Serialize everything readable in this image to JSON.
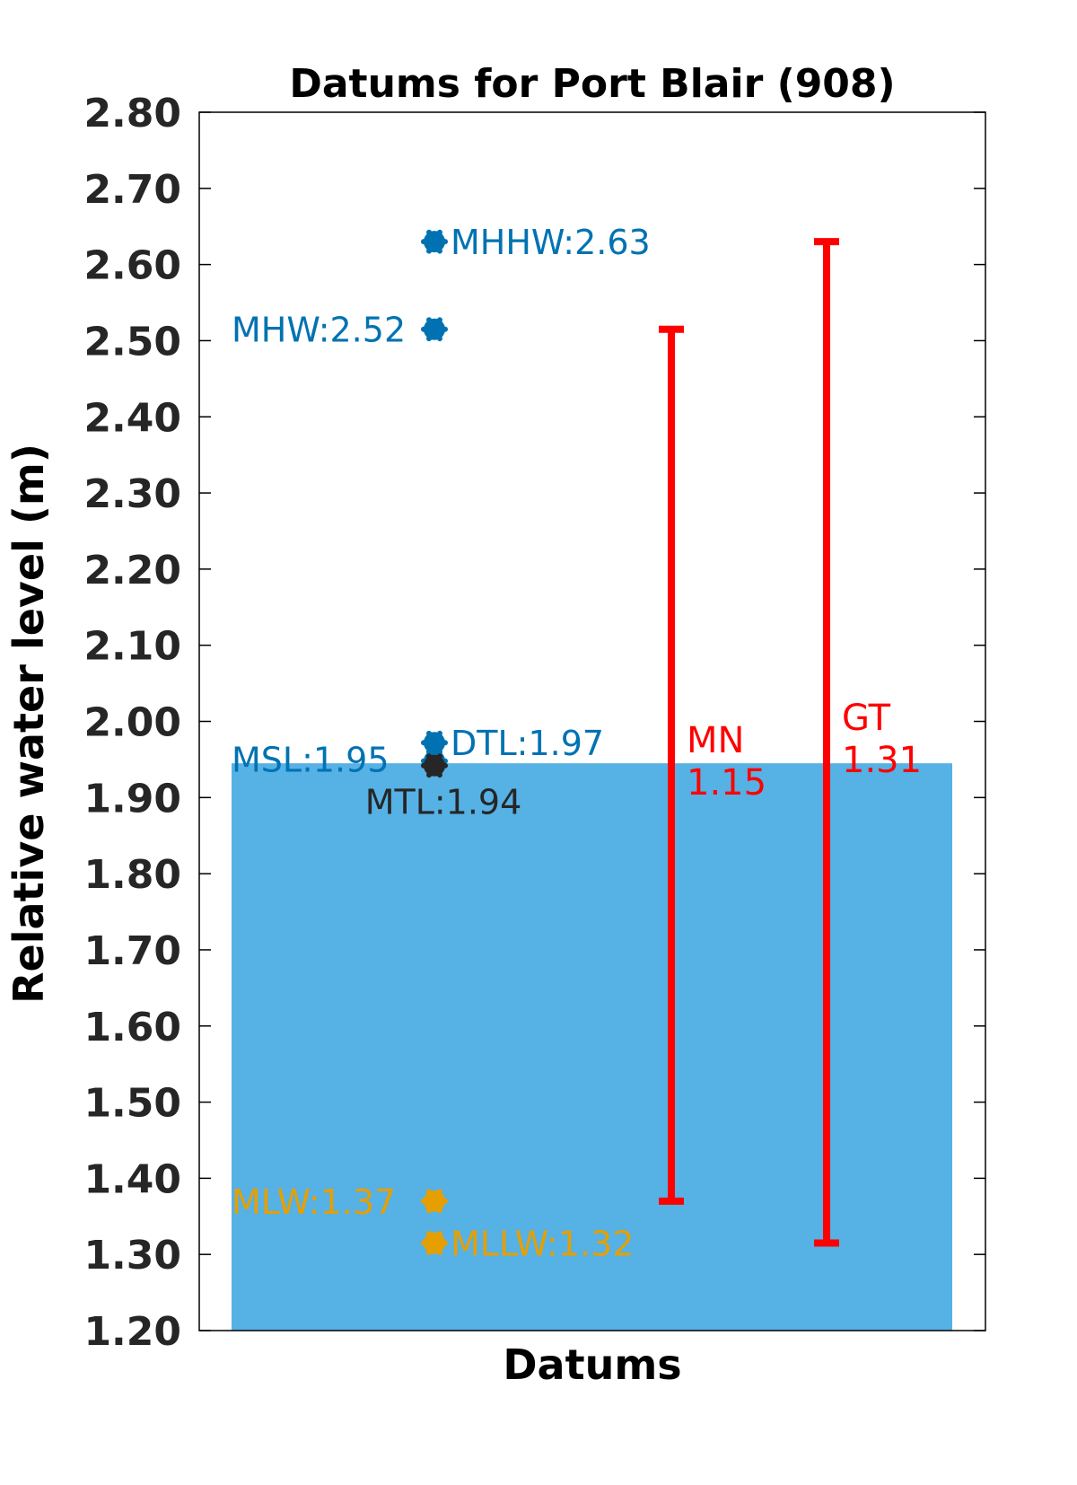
{
  "chart_data": {
    "type": "datum-plot",
    "title": "Datums for Port Blair (908)",
    "xlabel": "Datums",
    "ylabel": "Relative water level (m)",
    "ylim": [
      1.2,
      2.8
    ],
    "yticks": [
      "1.20",
      "1.30",
      "1.40",
      "1.50",
      "1.60",
      "1.70",
      "1.80",
      "1.90",
      "2.00",
      "2.10",
      "2.20",
      "2.30",
      "2.40",
      "2.50",
      "2.60",
      "2.70",
      "2.80"
    ],
    "grid": false,
    "fill": {
      "from": 1.2,
      "to": 1.945,
      "color": "#56B1E5"
    },
    "datums": [
      {
        "label": "MHHW:2.63",
        "value": 2.63,
        "color": "#0072B2",
        "label_side": "right"
      },
      {
        "label": "MHW:2.52",
        "value": 2.515,
        "color": "#0072B2",
        "label_side": "left"
      },
      {
        "label": "DTL:1.97",
        "value": 1.972,
        "color": "#0072B2",
        "label_side": "right"
      },
      {
        "label": "MSL:1.95",
        "value": 1.948,
        "color": "#0072B2",
        "label_side": "left"
      },
      {
        "label": "MTL:1.94",
        "value": 1.942,
        "color": "#262626",
        "label_side": "below"
      },
      {
        "label": "MLW:1.37",
        "value": 1.37,
        "color": "#E69F00",
        "label_side": "left"
      },
      {
        "label": "MLLW:1.32",
        "value": 1.315,
        "color": "#E69F00",
        "label_side": "right"
      }
    ],
    "ranges": [
      {
        "name": "MN",
        "value_text": "1.15",
        "low": 1.37,
        "high": 2.515,
        "color": "#FF0000"
      },
      {
        "name": "GT",
        "value_text": "1.31",
        "low": 1.315,
        "high": 2.63,
        "color": "#FF0000"
      }
    ]
  }
}
